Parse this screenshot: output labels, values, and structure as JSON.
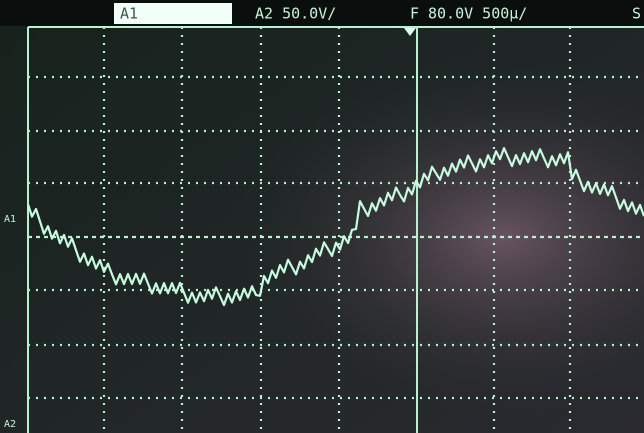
{
  "screen": {
    "top_bar": {
      "channel_1": "A1",
      "channel_2": "A2 50.0V/",
      "trigger": "F",
      "timebase": "80.0V 500µ/",
      "cut_off": "S"
    },
    "left_markers": {
      "channel_1": "A1",
      "channel_2": "A2"
    }
  }
}
